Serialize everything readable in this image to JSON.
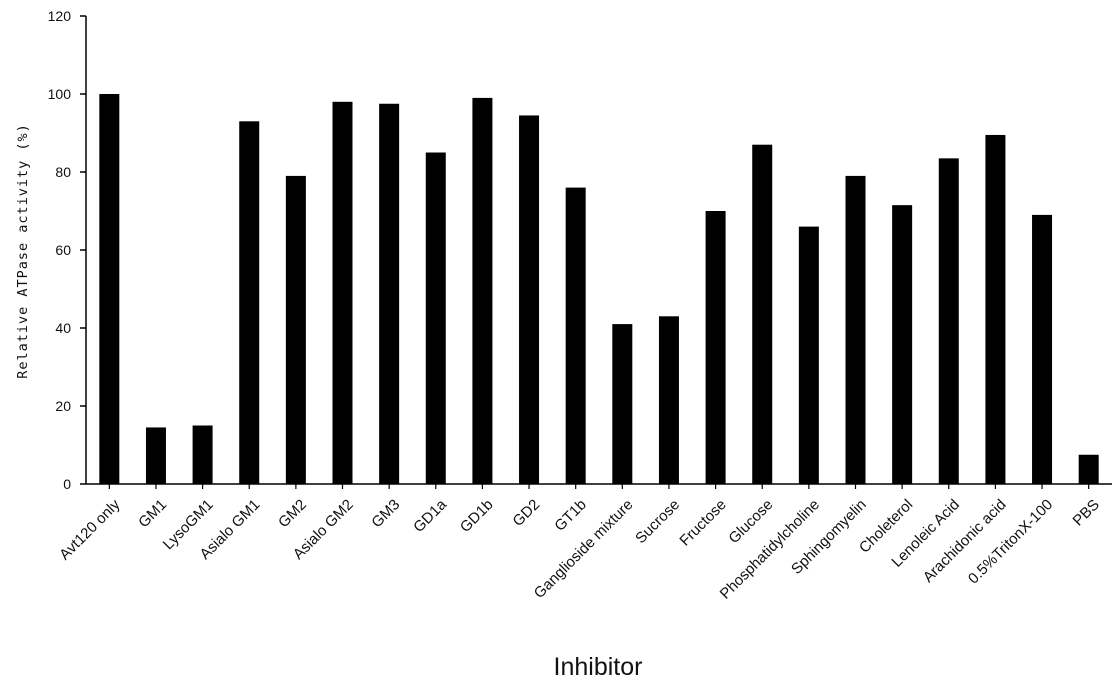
{
  "chart_data": {
    "type": "bar",
    "xlabel": "Inhibitor",
    "ylabel": "Relative ATPase activity (%)",
    "ylim": [
      0,
      120
    ],
    "yticks": [
      0,
      20,
      40,
      60,
      80,
      100,
      120
    ],
    "grid": false,
    "legend": "none",
    "bar_color": "#000000",
    "categories": [
      "Avt120 only",
      "GM1",
      "LysoGM1",
      "Asialo GM1",
      "GM2",
      "Asialo GM2",
      "GM3",
      "GD1a",
      "GD1b",
      "GD2",
      "GT1b",
      "Ganglioside mixture",
      "Sucrose",
      "Fructose",
      "Glucose",
      "Phosphatidylcholine",
      "Sphingomyelin",
      "Choleterol",
      "Lenoleic Acid",
      "Arachidonic acid",
      "0.5%TritonX-100",
      "PBS"
    ],
    "values": [
      100,
      14.5,
      15,
      93,
      79,
      98,
      97.5,
      85,
      99,
      94.5,
      76,
      41,
      43,
      70,
      87,
      66,
      79,
      71.5,
      83.5,
      89.5,
      69,
      7.5
    ]
  }
}
